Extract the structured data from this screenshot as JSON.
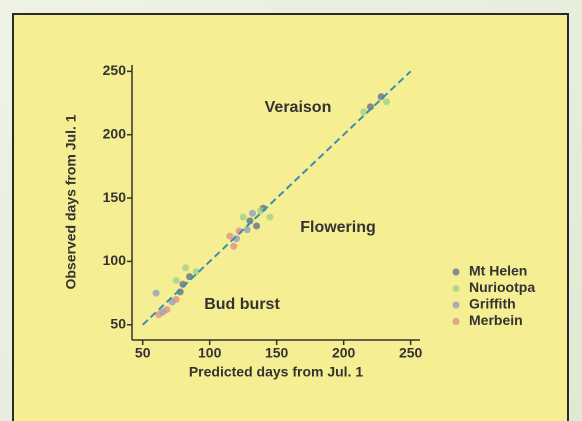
{
  "chart_data": {
    "type": "scatter",
    "x_label": "Predicted days from Jul. 1",
    "y_label": "Observed days from Jul. 1",
    "annotations": [
      "Veraison",
      "Flowering",
      "Bud burst"
    ],
    "xlim": [
      42,
      257
    ],
    "ylim": [
      38,
      255
    ],
    "xticks": [
      50,
      100,
      150,
      200,
      250
    ],
    "yticks": [
      50,
      100,
      150,
      200,
      250
    ],
    "identity_line": {
      "from": 50,
      "to": 250,
      "color": "#3a8fb0"
    },
    "legend": "right",
    "series": [
      {
        "name": "Mt Helen",
        "color": "#5a6a8a",
        "x": [
          80,
          85,
          78,
          130,
          135,
          140,
          220,
          228
        ],
        "values": [
          82,
          88,
          76,
          132,
          128,
          142,
          222,
          230
        ]
      },
      {
        "name": "Nuriootpa",
        "color": "#9ccf8c",
        "x": [
          75,
          90,
          82,
          138,
          145,
          125,
          215,
          232
        ],
        "values": [
          85,
          92,
          95,
          140,
          135,
          135,
          218,
          226
        ]
      },
      {
        "name": "Griffith",
        "color": "#8a9ac0",
        "x": [
          65,
          72,
          60,
          120,
          128,
          132
        ],
        "values": [
          60,
          68,
          75,
          118,
          125,
          138
        ]
      },
      {
        "name": "Merbein",
        "color": "#e08a8a",
        "x": [
          68,
          75,
          62,
          115,
          122,
          118
        ],
        "values": [
          62,
          70,
          58,
          120,
          124,
          112
        ]
      }
    ]
  }
}
